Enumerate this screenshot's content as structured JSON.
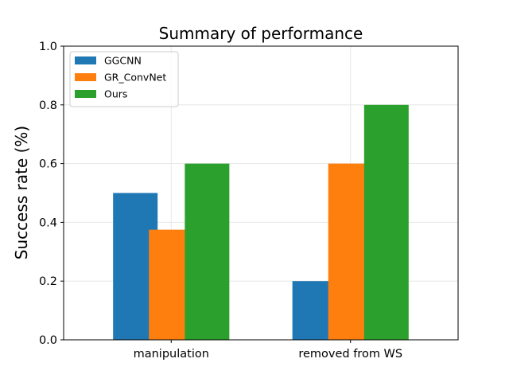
{
  "chart_data": {
    "type": "bar",
    "title": "Summary of performance",
    "xlabel": "",
    "ylabel": "Success  rate (%)",
    "categories": [
      "manipulation",
      "removed from WS"
    ],
    "series": [
      {
        "name": "GGCNN",
        "values": [
          0.5,
          0.2
        ],
        "color": "#1f77b4"
      },
      {
        "name": "GR_ConvNet",
        "values": [
          0.375,
          0.6
        ],
        "color": "#ff7f0e"
      },
      {
        "name": "Ours",
        "values": [
          0.6,
          0.8
        ],
        "color": "#2ca02c"
      }
    ],
    "ylim": [
      0.0,
      1.0
    ],
    "yticks": [
      "0.0",
      "0.2",
      "0.4",
      "0.6",
      "0.8",
      "1.0"
    ],
    "grid": true,
    "legend_position": "top-left"
  }
}
